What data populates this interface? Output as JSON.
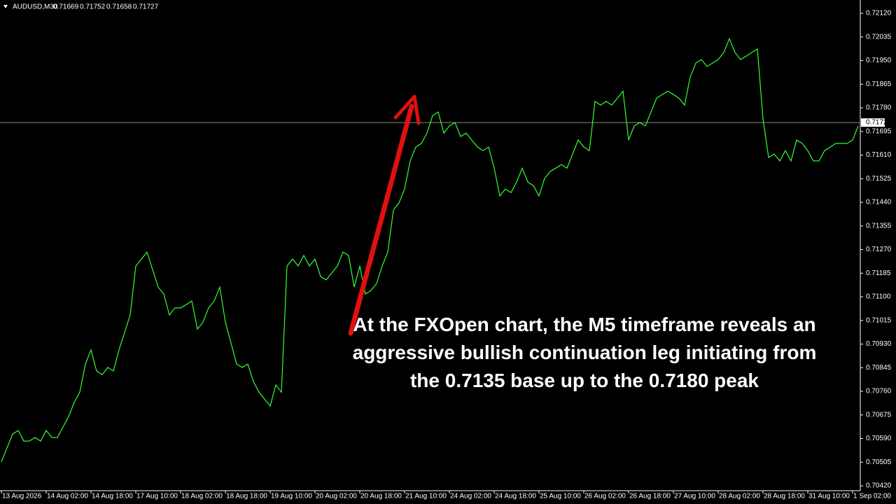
{
  "chart_data": {
    "type": "line",
    "symbol": "AUDUSD,M30",
    "ohlc": [
      0.71669,
      0.71752,
      0.71658,
      0.71727
    ],
    "last_price": 0.71727,
    "annotation": "At the FXOpen chart, the M5 timeframe reveals an aggressive bullish continuation leg initiating from the 0.7135 base up to the 0.7180 peak",
    "color": "#33ff33",
    "categories": [
      "13 Aug 2026",
      null,
      null,
      null,
      null,
      null,
      null,
      null,
      "14 Aug 02:00",
      null,
      null,
      null,
      null,
      null,
      null,
      null,
      "14 Aug 18:00",
      null,
      null,
      null,
      null,
      null,
      null,
      null,
      "17 Aug 10:00",
      null,
      null,
      null,
      null,
      null,
      null,
      null,
      "18 Aug 02:00",
      null,
      null,
      null,
      null,
      null,
      null,
      null,
      "18 Aug 18:00",
      null,
      null,
      null,
      null,
      null,
      null,
      null,
      "19 Aug 10:00",
      null,
      null,
      null,
      null,
      null,
      null,
      null,
      "20 Aug 02:00",
      null,
      null,
      null,
      null,
      null,
      null,
      null,
      "20 Aug 18:00",
      null,
      null,
      null,
      null,
      null,
      null,
      null,
      "21 Aug 10:00",
      null,
      null,
      null,
      null,
      null,
      null,
      null,
      "24 Aug 02:00",
      null,
      null,
      null,
      null,
      null,
      null,
      null,
      "24 Aug 18:00",
      null,
      null,
      null,
      null,
      null,
      null,
      null,
      "25 Aug 10:00",
      null,
      null,
      null,
      null,
      null,
      null,
      null,
      "26 Aug 02:00",
      null,
      null,
      null,
      null,
      null,
      null,
      null,
      "26 Aug 18:00",
      null,
      null,
      null,
      null,
      null,
      null,
      null,
      "27 Aug 10:00",
      null,
      null,
      null,
      null,
      null,
      null,
      null,
      "28 Aug 02:00",
      null,
      null,
      null,
      null,
      null,
      null,
      null,
      "28 Aug 18:00",
      null,
      null,
      null,
      null,
      null,
      null,
      null,
      "31 Aug 10:00",
      null,
      null,
      null,
      null,
      null,
      null,
      null,
      "1 Sep 02:00",
      null
    ],
    "values": [
      0.70506,
      0.70556,
      0.70606,
      0.70619,
      0.70581,
      0.70581,
      0.70594,
      0.70581,
      0.70619,
      0.70594,
      0.70594,
      0.70632,
      0.70669,
      0.7072,
      0.70757,
      0.70858,
      0.70909,
      0.70833,
      0.7082,
      0.70846,
      0.70833,
      0.70909,
      0.70972,
      0.71035,
      0.71211,
      0.71236,
      0.71261,
      0.71198,
      0.71135,
      0.7111,
      0.71035,
      0.7106,
      0.7106,
      0.71072,
      0.71085,
      0.70984,
      0.71009,
      0.7106,
      0.71085,
      0.71135,
      0.71009,
      0.70934,
      0.70858,
      0.70846,
      0.70858,
      0.70795,
      0.70757,
      0.70732,
      0.70707,
      0.70783,
      0.70757,
      0.71211,
      0.71236,
      0.71211,
      0.71249,
      0.71211,
      0.71236,
      0.71173,
      0.71161,
      0.71186,
      0.71211,
      0.71261,
      0.71249,
      0.71135,
      0.71211,
      0.7111,
      0.71123,
      0.71148,
      0.71211,
      0.71261,
      0.71412,
      0.71438,
      0.71488,
      0.71589,
      0.71639,
      0.71652,
      0.71689,
      0.71752,
      0.71765,
      0.71689,
      0.71715,
      0.71727,
      0.71677,
      0.71689,
      0.71664,
      0.71639,
      0.71626,
      0.71639,
      0.71563,
      0.71463,
      0.71488,
      0.71475,
      0.71513,
      0.71563,
      0.71513,
      0.715,
      0.71463,
      0.71526,
      0.71551,
      0.71563,
      0.71576,
      0.71563,
      0.71614,
      0.71664,
      0.71639,
      0.71626,
      0.71803,
      0.7179,
      0.71803,
      0.7179,
      0.71815,
      0.7184,
      0.71664,
      0.71715,
      0.71727,
      0.71715,
      0.71765,
      0.71815,
      0.71828,
      0.7184,
      0.71828,
      0.71815,
      0.7179,
      0.71891,
      0.71941,
      0.71954,
      0.71929,
      0.71941,
      0.71954,
      0.71979,
      0.72029,
      0.71979,
      0.71954,
      0.71966,
      0.71979,
      0.71992,
      0.7174,
      0.71601,
      0.71614,
      0.71589,
      0.71626,
      0.71589,
      0.71664,
      0.71652,
      0.71626,
      0.71589,
      0.71589,
      0.71626,
      0.71639,
      0.71652,
      0.71652,
      0.71652,
      0.71664,
      0.71715
    ],
    "ylim": [
      0.70405,
      0.72168
    ],
    "yticks": [
      {
        "value": 0.7212,
        "label": "0.72120"
      },
      {
        "value": 0.72035,
        "label": "0.72035"
      },
      {
        "value": 0.7195,
        "label": "0.71950"
      },
      {
        "value": 0.71865,
        "label": "0.71865"
      },
      {
        "value": 0.7178,
        "label": "0.71780"
      },
      {
        "value": 0.71695,
        "label": "0.71695"
      },
      {
        "value": 0.7161,
        "label": "0.71610"
      },
      {
        "value": 0.71525,
        "label": "0.71525"
      },
      {
        "value": 0.7144,
        "label": "0.71440"
      },
      {
        "value": 0.71355,
        "label": "0.71355"
      },
      {
        "value": 0.7127,
        "label": "0.71270"
      },
      {
        "value": 0.71185,
        "label": "0.71185"
      },
      {
        "value": 0.711,
        "label": "0.71100"
      },
      {
        "value": 0.71015,
        "label": "0.71015"
      },
      {
        "value": 0.7093,
        "label": "0.70930"
      },
      {
        "value": 0.70845,
        "label": "0.70845"
      },
      {
        "value": 0.7076,
        "label": "0.70760"
      },
      {
        "value": 0.70675,
        "label": "0.70675"
      },
      {
        "value": 0.7059,
        "label": "0.70590"
      },
      {
        "value": 0.70505,
        "label": "0.70505"
      },
      {
        "value": 0.7042,
        "label": "0.70420"
      }
    ]
  }
}
